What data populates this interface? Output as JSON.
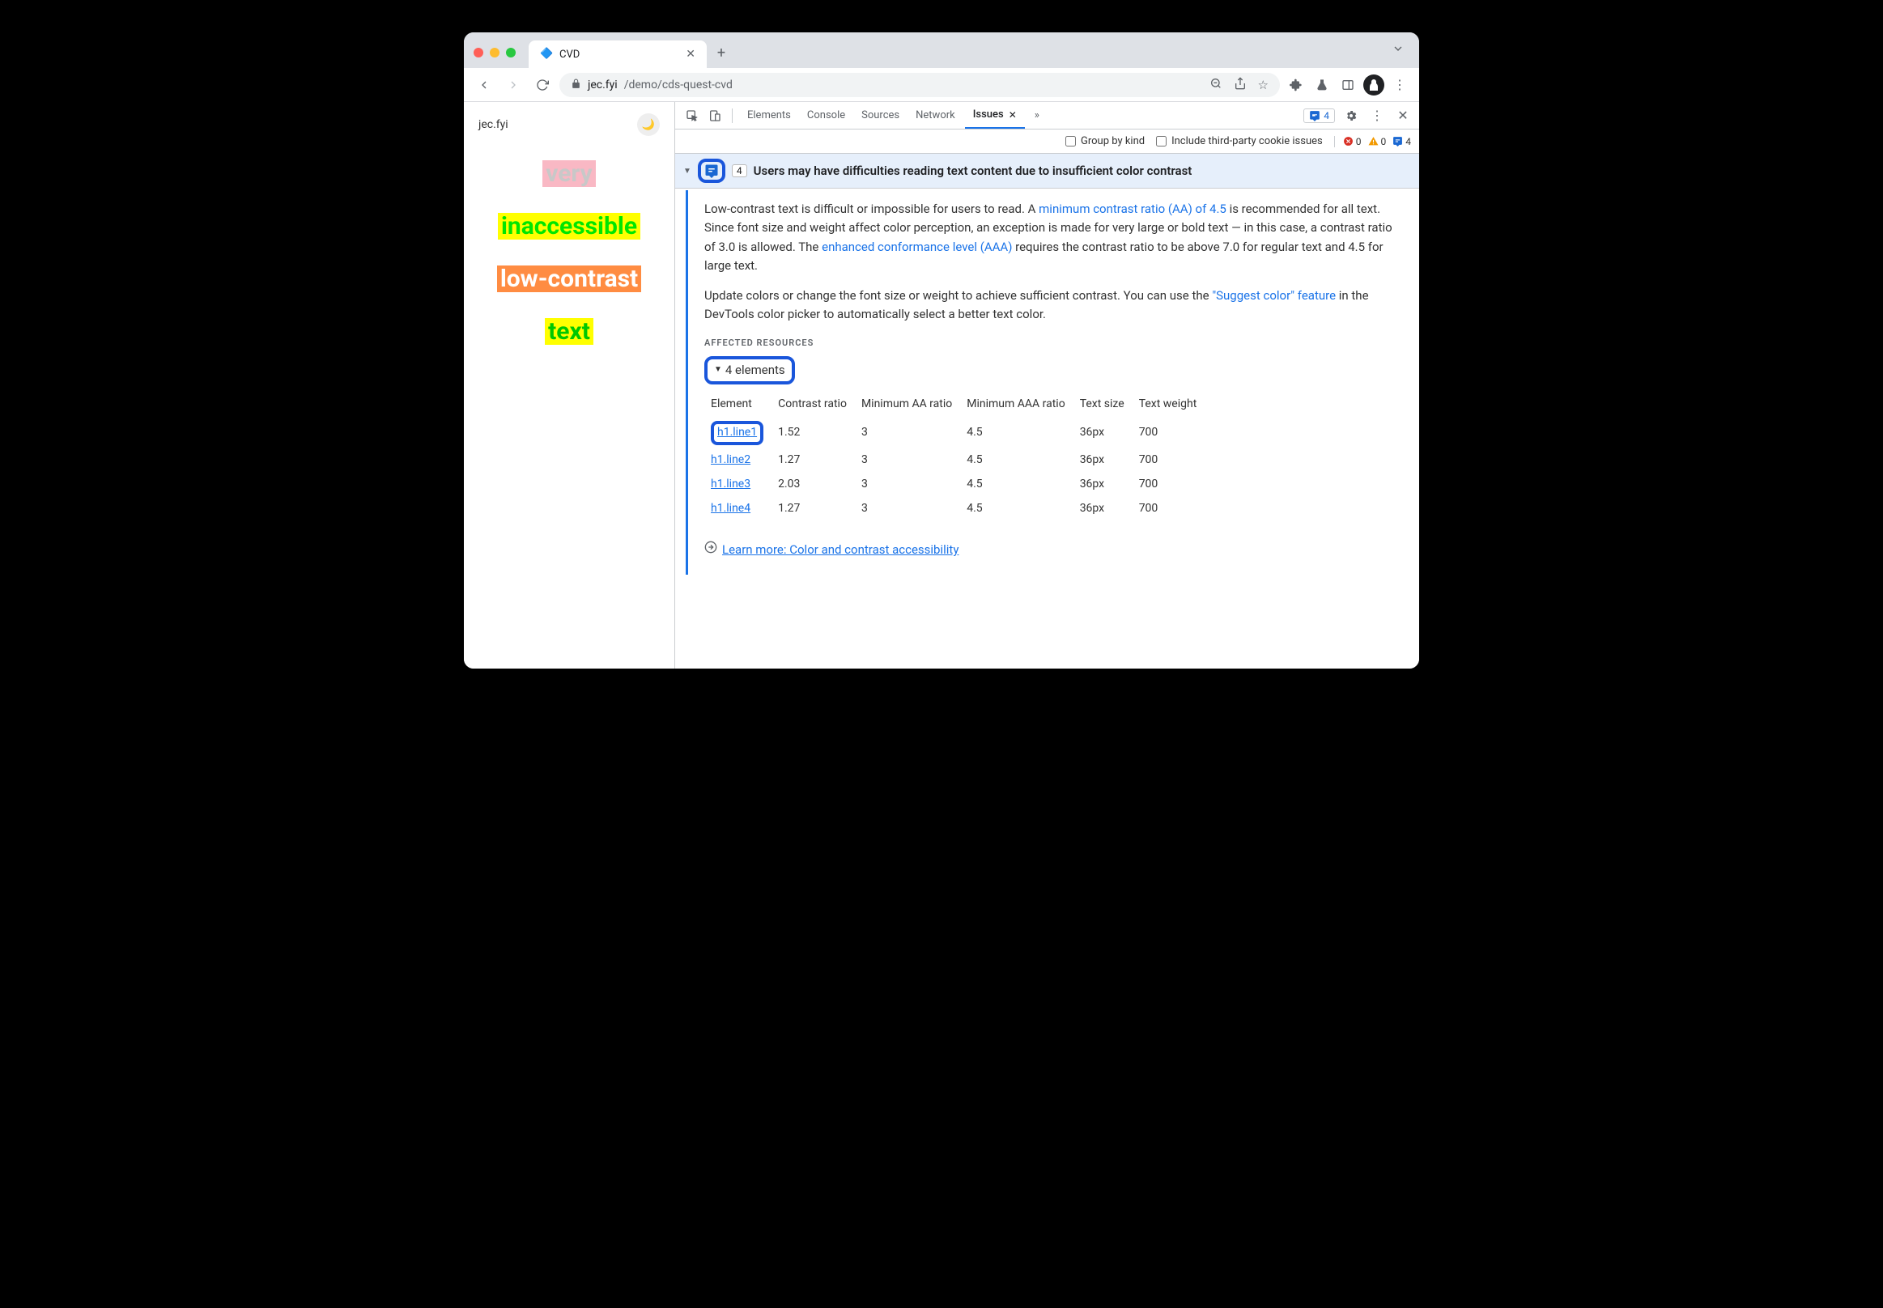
{
  "window": {
    "tab_title": "CVD",
    "url_domain": "jec.fyi",
    "url_path": "/demo/cds-quest-cvd"
  },
  "page": {
    "brand": "jec.fyi",
    "demo_items": [
      {
        "text": "very",
        "bg": "#f9b8c4",
        "fg": "#c8c8c8"
      },
      {
        "text": "inaccessible",
        "bg": "#ffff00",
        "fg": "#00e600"
      },
      {
        "text": "low-contrast",
        "bg": "#ff8c42",
        "fg": "#ffffff"
      },
      {
        "text": "text",
        "bg": "#ffff00",
        "fg": "#00c800"
      }
    ]
  },
  "devtools": {
    "tabs": [
      "Elements",
      "Console",
      "Sources",
      "Network"
    ],
    "active_tab": "Issues",
    "badge_count": "4",
    "filter_group": "Group by kind",
    "filter_third_party": "Include third-party cookie issues",
    "counters": {
      "errors": "0",
      "warnings": "0",
      "info": "4"
    }
  },
  "issue": {
    "count": "4",
    "title": "Users may have difficulties reading text content due to insufficient color contrast",
    "p1_a": "Low-contrast text is difficult or impossible for users to read. A ",
    "p1_link": "minimum contrast ratio (AA) of 4.5",
    "p1_b": " is recommended for all text. Since font size and weight affect color perception, an exception is made for very large or bold text — in this case, a contrast ratio of 3.0 is allowed. The ",
    "p1_link2": "enhanced conformance level (AAA)",
    "p1_c": " requires the contrast ratio to be above 7.0 for regular text and 4.5 for large text.",
    "p2_a": "Update colors or change the font size or weight to achieve sufficient contrast. You can use the ",
    "p2_link": "\"Suggest color\" feature",
    "p2_b": " in the DevTools color picker to automatically select a better text color.",
    "affected_label": "AFFECTED RESOURCES",
    "elements_label": "4 elements",
    "columns": [
      "Element",
      "Contrast ratio",
      "Minimum AA ratio",
      "Minimum AAA ratio",
      "Text size",
      "Text weight"
    ],
    "rows": [
      {
        "el": "h1.line1",
        "cr": "1.52",
        "aa": "3",
        "aaa": "4.5",
        "size": "36px",
        "weight": "700",
        "highlighted": true
      },
      {
        "el": "h1.line2",
        "cr": "1.27",
        "aa": "3",
        "aaa": "4.5",
        "size": "36px",
        "weight": "700",
        "highlighted": false
      },
      {
        "el": "h1.line3",
        "cr": "2.03",
        "aa": "3",
        "aaa": "4.5",
        "size": "36px",
        "weight": "700",
        "highlighted": false
      },
      {
        "el": "h1.line4",
        "cr": "1.27",
        "aa": "3",
        "aaa": "4.5",
        "size": "36px",
        "weight": "700",
        "highlighted": false
      }
    ],
    "learn_more": "Learn more: Color and contrast accessibility"
  }
}
